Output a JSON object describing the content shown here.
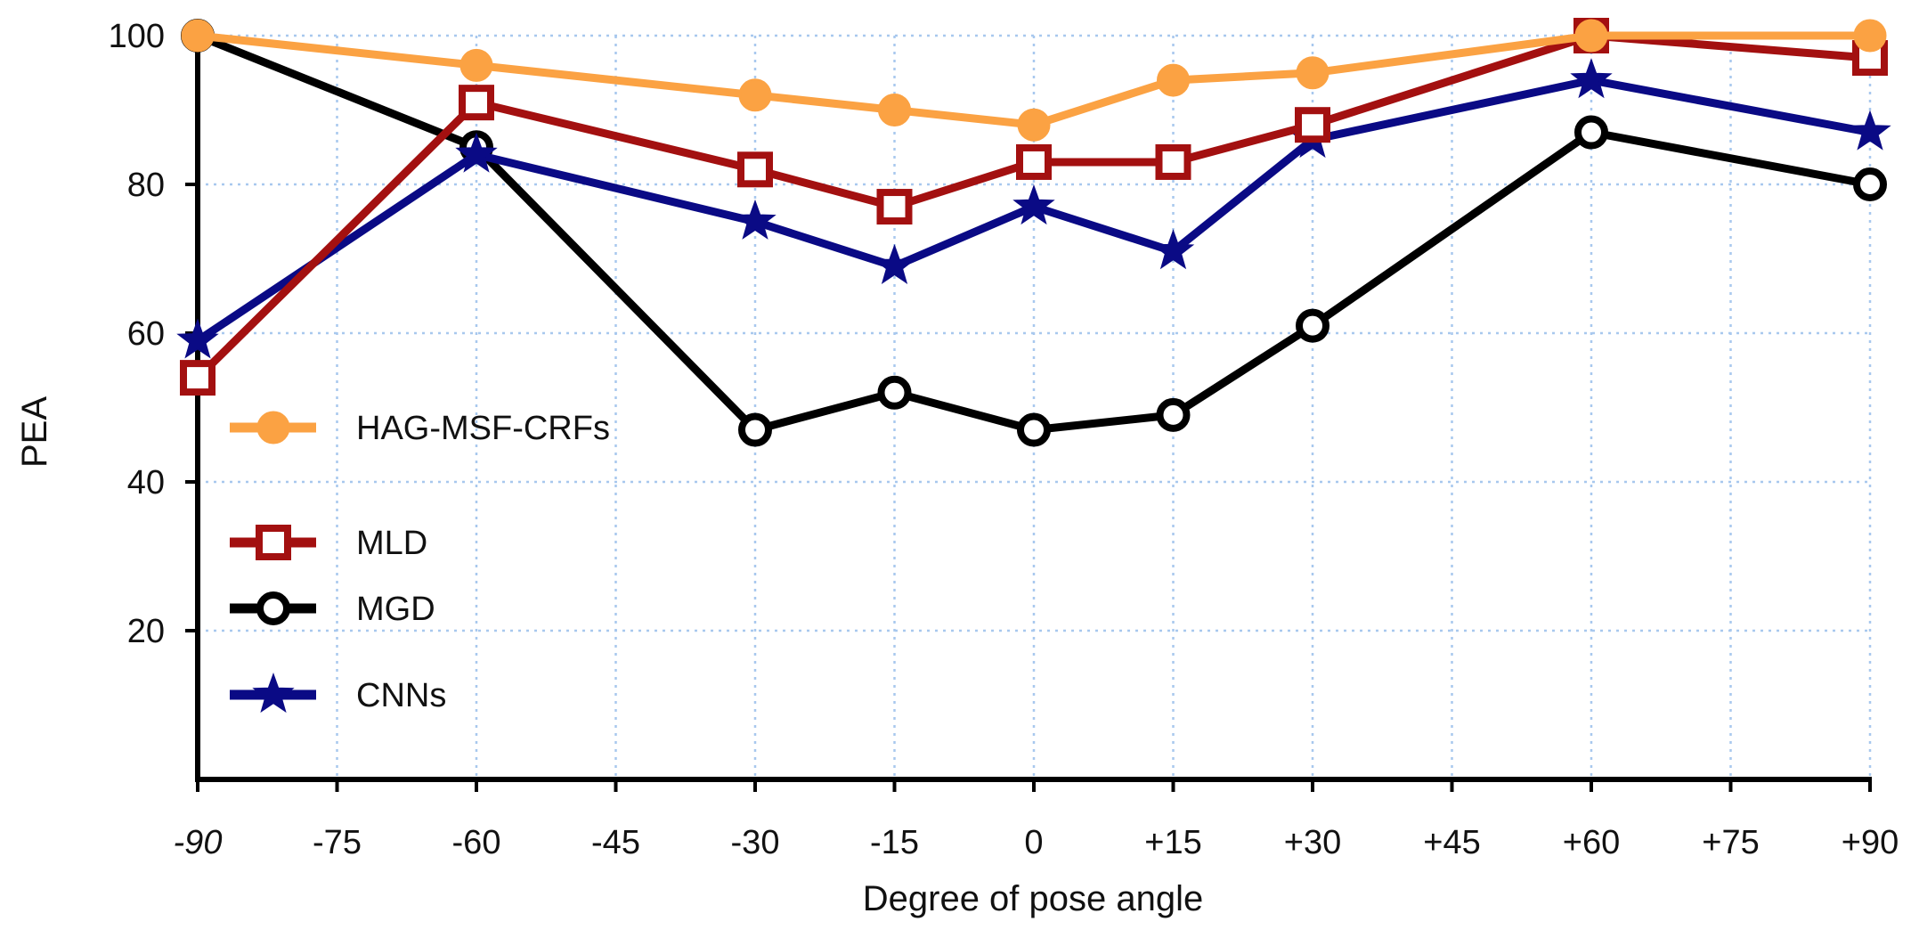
{
  "chart_data": {
    "type": "line",
    "title": "",
    "xlabel": "Degree of pose angle",
    "ylabel": "PEA",
    "x_ticks": [
      -90,
      -75,
      -60,
      -45,
      -30,
      -15,
      0,
      15,
      30,
      45,
      60,
      75,
      90
    ],
    "x_tick_labels": [
      "-90",
      "-75",
      "-60",
      "-45",
      "-30",
      "-15",
      "0",
      "+15",
      "+30",
      "+45",
      "+60",
      "+75",
      "+90"
    ],
    "y_ticks": [
      20,
      40,
      60,
      80,
      100
    ],
    "y_tick_labels": [
      "20",
      "40",
      "60",
      "80",
      "100"
    ],
    "xlim": [
      -90,
      90
    ],
    "ylim": [
      0,
      100
    ],
    "grid": true,
    "legend_position": "left",
    "series": [
      {
        "name": "HAG-MSF-CRFs",
        "color": "#FBA243",
        "marker": "circle-filled",
        "x": [
          -90,
          -60,
          -30,
          -15,
          0,
          15,
          30,
          60,
          90
        ],
        "values": [
          100,
          96,
          92,
          90,
          88,
          94,
          95,
          100,
          100
        ]
      },
      {
        "name": "MLD",
        "color": "#A31010",
        "marker": "square",
        "x": [
          -90,
          -60,
          -30,
          -15,
          0,
          15,
          30,
          60,
          90
        ],
        "values": [
          54,
          91,
          82,
          77,
          83,
          83,
          88,
          100,
          97
        ]
      },
      {
        "name": "MGD",
        "color": "#000000",
        "marker": "circle-open",
        "x": [
          -90,
          -60,
          -30,
          -15,
          0,
          15,
          30,
          60,
          90
        ],
        "values": [
          100,
          85,
          47,
          52,
          47,
          49,
          61,
          87,
          80
        ]
      },
      {
        "name": "CNNs",
        "color": "#0A0A85",
        "marker": "star",
        "x": [
          -90,
          -60,
          -30,
          -15,
          0,
          15,
          30,
          60,
          90
        ],
        "values": [
          59,
          84,
          75,
          69,
          77,
          71,
          86,
          94,
          87
        ]
      }
    ]
  }
}
